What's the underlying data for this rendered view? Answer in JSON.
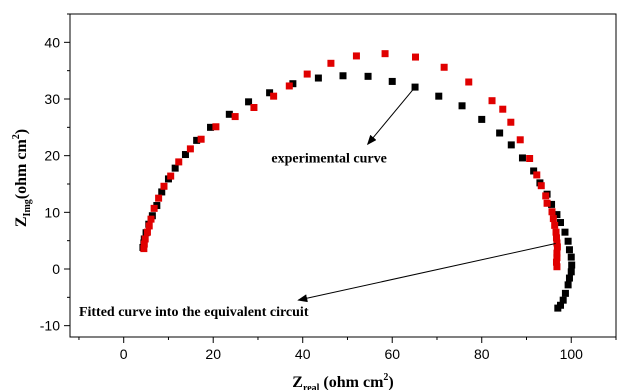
{
  "chart_data": {
    "type": "scatter",
    "title": "",
    "xlabel": {
      "main": "Z",
      "sub": "real",
      "unit_pre": " (ohm cm",
      "sup": "2",
      "unit_post": ")"
    },
    "ylabel": {
      "main": "Z",
      "sub": "Img",
      "unit_pre": "(ohm cm",
      "sup": "2",
      "unit_post": ")"
    },
    "xlim": [
      -12,
      110
    ],
    "ylim": [
      -12,
      45
    ],
    "xticks": [
      0,
      20,
      40,
      60,
      80,
      100
    ],
    "yticks": [
      -10,
      0,
      10,
      20,
      30,
      40
    ],
    "grid": false,
    "legend": "none",
    "annotations": [
      {
        "text": "experimental curve",
        "text_x": 33,
        "text_y": 18.8,
        "arrow_from": [
          65,
          32
        ],
        "arrow_to": [
          54.5,
          22
        ]
      },
      {
        "text": "Fitted curve into the equivalent circuit",
        "text_x": -10,
        "text_y": -8.3,
        "arrow_from": [
          96.5,
          4.5
        ],
        "arrow_to": [
          39,
          -5.5
        ]
      }
    ],
    "series": [
      {
        "color": "#000000",
        "points": [
          [
            4.3,
            3.8
          ],
          [
            4.5,
            4.6
          ],
          [
            4.6,
            5.3
          ],
          [
            5.0,
            6.4
          ],
          [
            5.6,
            7.9
          ],
          [
            6.4,
            9.4
          ],
          [
            7.4,
            11.2
          ],
          [
            8.5,
            13.6
          ],
          [
            10.0,
            15.9
          ],
          [
            11.5,
            17.8
          ],
          [
            13.8,
            20.2
          ],
          [
            16.3,
            22.7
          ],
          [
            19.4,
            25.0
          ],
          [
            23.6,
            27.3
          ],
          [
            27.9,
            29.5
          ],
          [
            32.6,
            31.1
          ],
          [
            37.8,
            32.7
          ],
          [
            43.5,
            33.7
          ],
          [
            49.0,
            34.1
          ],
          [
            54.6,
            34.0
          ],
          [
            60.0,
            33.1
          ],
          [
            65.1,
            32.1
          ],
          [
            70.4,
            30.5
          ],
          [
            75.6,
            28.8
          ],
          [
            80.0,
            26.4
          ],
          [
            84.0,
            24.0
          ],
          [
            86.6,
            21.9
          ],
          [
            89.1,
            19.6
          ],
          [
            91.6,
            17.3
          ],
          [
            93.0,
            15.2
          ],
          [
            94.6,
            13.2
          ],
          [
            95.6,
            11.4
          ],
          [
            96.8,
            9.6
          ],
          [
            97.6,
            8.2
          ],
          [
            98.6,
            6.5
          ],
          [
            99.3,
            4.9
          ],
          [
            99.6,
            3.4
          ],
          [
            100.0,
            2.1
          ],
          [
            100.1,
            0.7
          ],
          [
            100.0,
            -0.5
          ],
          [
            99.6,
            -1.6
          ],
          [
            99.3,
            -2.8
          ],
          [
            98.7,
            -4.3
          ],
          [
            98.2,
            -5.5
          ],
          [
            97.6,
            -6.4
          ],
          [
            97.0,
            -6.9
          ]
        ]
      },
      {
        "color": "#e00000",
        "points": [
          [
            4.5,
            3.6
          ],
          [
            4.6,
            4.4
          ],
          [
            4.8,
            5.3
          ],
          [
            5.3,
            6.5
          ],
          [
            5.7,
            7.6
          ],
          [
            6.1,
            8.8
          ],
          [
            6.8,
            10.7
          ],
          [
            7.8,
            12.5
          ],
          [
            9.0,
            14.6
          ],
          [
            10.5,
            16.4
          ],
          [
            12.3,
            18.9
          ],
          [
            14.9,
            21.2
          ],
          [
            17.3,
            22.9
          ],
          [
            20.6,
            25.1
          ],
          [
            24.9,
            26.9
          ],
          [
            29.1,
            28.5
          ],
          [
            33.5,
            30.5
          ],
          [
            37.0,
            32.3
          ],
          [
            41.0,
            34.4
          ],
          [
            46.3,
            36.3
          ],
          [
            52.0,
            37.6
          ],
          [
            58.4,
            38.0
          ],
          [
            65.2,
            37.4
          ],
          [
            71.6,
            35.6
          ],
          [
            77.1,
            33.0
          ],
          [
            82.3,
            29.7
          ],
          [
            84.7,
            28.2
          ],
          [
            86.5,
            25.9
          ],
          [
            88.6,
            22.8
          ],
          [
            90.7,
            19.5
          ],
          [
            92.3,
            16.6
          ],
          [
            93.3,
            14.7
          ],
          [
            94.3,
            12.9
          ],
          [
            94.6,
            11.6
          ],
          [
            95.7,
            10.1
          ],
          [
            96.0,
            8.9
          ],
          [
            96.3,
            7.7
          ],
          [
            96.6,
            6.5
          ],
          [
            96.7,
            5.5
          ],
          [
            96.8,
            4.6
          ],
          [
            96.9,
            3.9
          ],
          [
            96.8,
            2.8
          ],
          [
            96.8,
            2.0
          ],
          [
            96.7,
            1.2
          ],
          [
            96.8,
            0.4
          ]
        ]
      }
    ]
  }
}
